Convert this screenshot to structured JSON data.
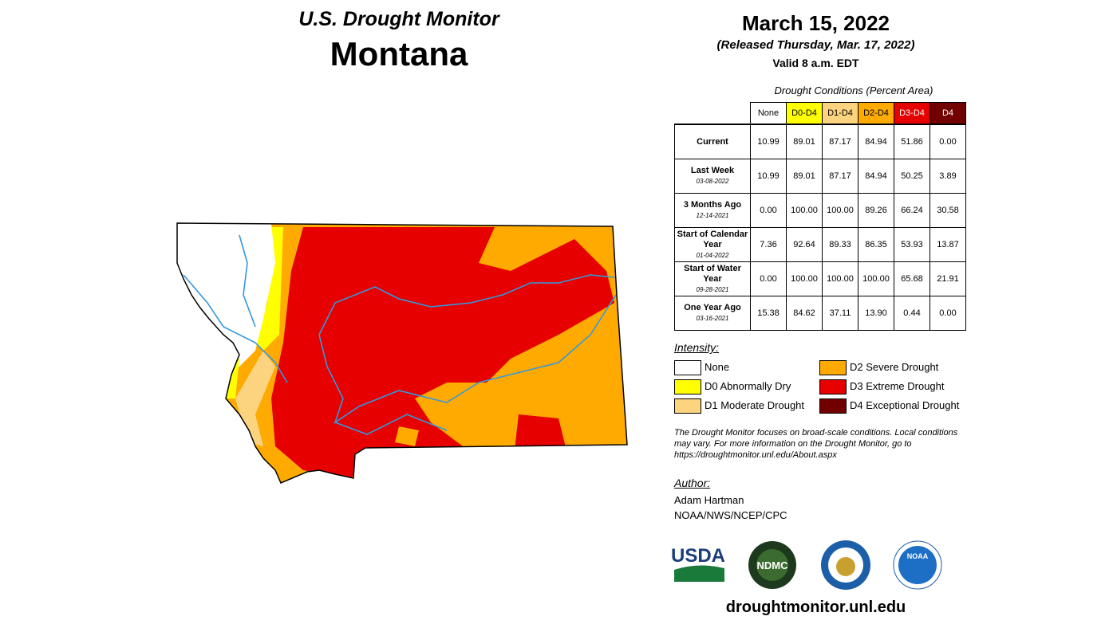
{
  "header": {
    "title": "U.S. Drought Monitor",
    "state": "Montana",
    "date": "March 15, 2022",
    "released": "(Released Thursday, Mar. 17, 2022)",
    "valid": "Valid 8 a.m. EDT"
  },
  "table": {
    "caption": "Drought Conditions (Percent Area)",
    "columns": [
      "None",
      "D0-D4",
      "D1-D4",
      "D2-D4",
      "D3-D4",
      "D4"
    ],
    "rows": [
      {
        "label": "Current",
        "values": [
          "10.99",
          "89.01",
          "87.17",
          "84.94",
          "51.86",
          "0.00"
        ]
      },
      {
        "label": "Last Week",
        "date": "03-08-2022",
        "values": [
          "10.99",
          "89.01",
          "87.17",
          "84.94",
          "50.25",
          "3.89"
        ]
      },
      {
        "label": "3 Months Ago",
        "date": "12-14-2021",
        "values": [
          "0.00",
          "100.00",
          "100.00",
          "89.26",
          "66.24",
          "30.58"
        ]
      },
      {
        "label": "Start of Calendar Year",
        "date": "01-04-2022",
        "values": [
          "7.36",
          "92.64",
          "89.33",
          "86.35",
          "53.93",
          "13.87"
        ]
      },
      {
        "label": "Start of Water Year",
        "date": "09-28-2021",
        "values": [
          "0.00",
          "100.00",
          "100.00",
          "100.00",
          "65.68",
          "21.91"
        ]
      },
      {
        "label": "One Year Ago",
        "date": "03-16-2021",
        "values": [
          "15.38",
          "84.62",
          "37.11",
          "13.90",
          "0.44",
          "0.00"
        ]
      }
    ]
  },
  "legend": {
    "title": "Intensity:",
    "items": [
      "None",
      "D0 Abnormally Dry",
      "D1 Moderate Drought",
      "D2 Severe Drought",
      "D3 Extreme Drought",
      "D4 Exceptional Drought"
    ]
  },
  "note": "The Drought Monitor focuses on broad-scale conditions. Local conditions may vary. For more information on the Drought Monitor, go to https://droughtmonitor.unl.edu/About.aspx",
  "author": {
    "label": "Author:",
    "name": "Adam Hartman",
    "org": "NOAA/NWS/NCEP/CPC"
  },
  "logos": [
    "USDA",
    "NDMC",
    "NOAA"
  ],
  "footer": "droughtmonitor.unl.edu"
}
